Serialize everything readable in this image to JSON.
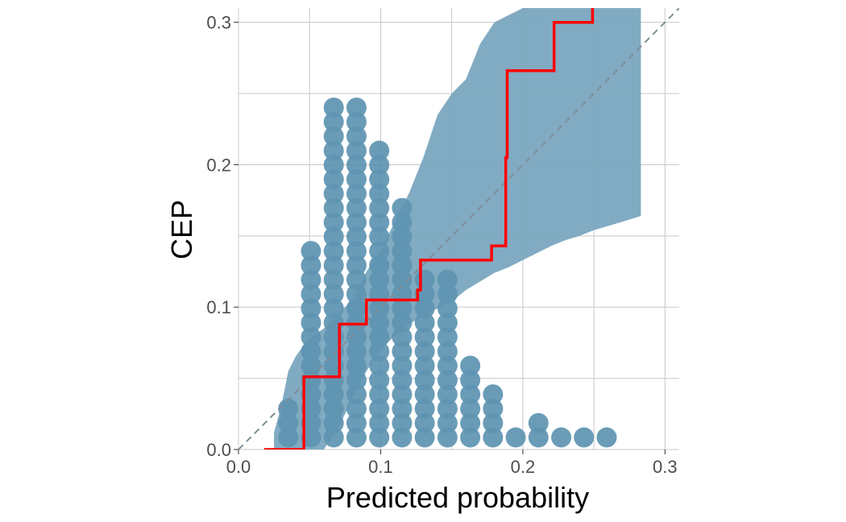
{
  "chart_data": {
    "type": "scatter",
    "title": "",
    "xlabel": "Predicted probability",
    "ylabel": "CEP",
    "xlim": [
      0,
      0.31
    ],
    "ylim": [
      0,
      0.31
    ],
    "x_ticks": [
      0.0,
      0.1,
      0.2,
      0.3
    ],
    "x_tick_labels": [
      "0.0",
      "0.1",
      "0.2",
      "0.3"
    ],
    "y_ticks": [
      0.0,
      0.1,
      0.2,
      0.3
    ],
    "y_tick_labels": [
      "0.0",
      "0.1",
      "0.2",
      "0.3"
    ],
    "grid": true,
    "colors": {
      "band": "#7aa7bf",
      "dots": "#5f95b2",
      "step": "#ff0000",
      "diagonal": "#7f8c94",
      "grid": "#c8c8c8"
    },
    "series": [
      {
        "name": "dotplot",
        "kind": "dots",
        "bin_width": 0.0162,
        "bins": [
          {
            "x": 0.035,
            "count": 3
          },
          {
            "x": 0.051,
            "count": 14
          },
          {
            "x": 0.067,
            "count": 24
          },
          {
            "x": 0.083,
            "count": 24
          },
          {
            "x": 0.099,
            "count": 21
          },
          {
            "x": 0.115,
            "count": 17
          },
          {
            "x": 0.131,
            "count": 12
          },
          {
            "x": 0.147,
            "count": 12
          },
          {
            "x": 0.163,
            "count": 6
          },
          {
            "x": 0.179,
            "count": 4
          },
          {
            "x": 0.195,
            "count": 1
          },
          {
            "x": 0.211,
            "count": 2
          },
          {
            "x": 0.227,
            "count": 1
          },
          {
            "x": 0.243,
            "count": 1
          },
          {
            "x": 0.259,
            "count": 1
          }
        ]
      },
      {
        "name": "consistency band",
        "kind": "ribbon",
        "x": [
          0.025,
          0.03,
          0.035,
          0.04,
          0.045,
          0.05,
          0.06,
          0.07,
          0.08,
          0.09,
          0.1,
          0.11,
          0.12,
          0.13,
          0.14,
          0.15,
          0.16,
          0.17,
          0.18,
          0.19,
          0.2,
          0.21,
          0.22,
          0.23,
          0.24,
          0.25,
          0.26,
          0.27,
          0.283
        ],
        "lower": [
          0.0,
          0.0,
          0.0,
          0.0,
          0.0,
          0.0,
          0.0,
          0.015,
          0.035,
          0.055,
          0.07,
          0.08,
          0.088,
          0.094,
          0.099,
          0.104,
          0.112,
          0.118,
          0.124,
          0.128,
          0.133,
          0.138,
          0.143,
          0.147,
          0.15,
          0.154,
          0.157,
          0.16,
          0.164
        ],
        "upper": [
          0.012,
          0.03,
          0.055,
          0.065,
          0.072,
          0.078,
          0.085,
          0.095,
          0.105,
          0.125,
          0.14,
          0.16,
          0.18,
          0.205,
          0.235,
          0.25,
          0.26,
          0.285,
          0.3,
          0.305,
          0.31,
          0.31,
          0.31,
          0.31,
          0.31,
          0.31,
          0.31,
          0.31,
          0.31
        ]
      },
      {
        "name": "CEP",
        "kind": "step",
        "x": [
          0.018,
          0.046,
          0.046,
          0.071,
          0.071,
          0.09,
          0.09,
          0.126,
          0.126,
          0.128,
          0.128,
          0.162,
          0.162,
          0.178,
          0.178,
          0.188,
          0.188,
          0.189,
          0.189,
          0.222,
          0.222,
          0.249,
          0.249
        ],
        "y": [
          0.0,
          0.0,
          0.051,
          0.051,
          0.088,
          0.088,
          0.105,
          0.105,
          0.112,
          0.112,
          0.133,
          0.133,
          0.133,
          0.133,
          0.143,
          0.143,
          0.205,
          0.205,
          0.266,
          0.266,
          0.3,
          0.3,
          0.31
        ]
      },
      {
        "name": "identity",
        "kind": "diagonal",
        "x": [
          0.0,
          0.31
        ],
        "y": [
          0.0,
          0.31
        ]
      }
    ]
  }
}
